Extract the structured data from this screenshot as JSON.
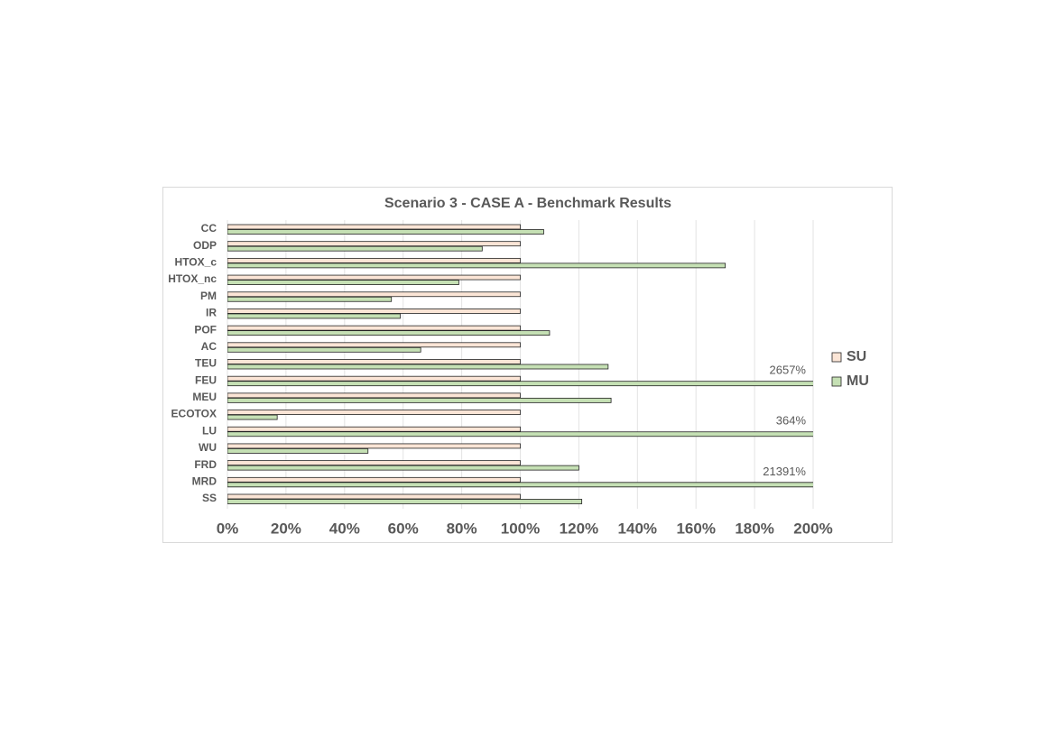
{
  "chart_data": {
    "type": "hbar",
    "title": "Scenario 3 - CASE A - Benchmark Results",
    "categories": [
      "CC",
      "ODP",
      "HTOX_c",
      "HTOX_nc",
      "PM",
      "IR",
      "POF",
      "AC",
      "TEU",
      "FEU",
      "MEU",
      "ECOTOX",
      "LU",
      "WU",
      "FRD",
      "MRD",
      "SS"
    ],
    "series": [
      {
        "name": "SU",
        "color": "#fbe5d6",
        "values": [
          100,
          100,
          100,
          100,
          100,
          100,
          100,
          100,
          100,
          100,
          100,
          100,
          100,
          100,
          100,
          100,
          100
        ]
      },
      {
        "name": "MU",
        "color": "#c5e0b4",
        "values": [
          108,
          87,
          170,
          79,
          56,
          59,
          110,
          66,
          130,
          2657,
          131,
          17,
          364,
          48,
          120,
          21391,
          121
        ],
        "value_labels": [
          null,
          null,
          null,
          null,
          null,
          null,
          null,
          null,
          null,
          "2657%",
          null,
          null,
          "364%",
          null,
          null,
          "21391%",
          null
        ]
      }
    ],
    "xlim": [
      0,
      200
    ],
    "xticks": [
      {
        "value": 0,
        "label": "0%"
      },
      {
        "value": 20,
        "label": "20%"
      },
      {
        "value": 40,
        "label": "40%"
      },
      {
        "value": 60,
        "label": "60%"
      },
      {
        "value": 80,
        "label": "80%"
      },
      {
        "value": 100,
        "label": "100%"
      },
      {
        "value": 120,
        "label": "120%"
      },
      {
        "value": 140,
        "label": "140%"
      },
      {
        "value": 160,
        "label": "160%"
      },
      {
        "value": 180,
        "label": "180%"
      },
      {
        "value": 200,
        "label": "200%"
      }
    ],
    "grid": true,
    "legend": "right"
  }
}
